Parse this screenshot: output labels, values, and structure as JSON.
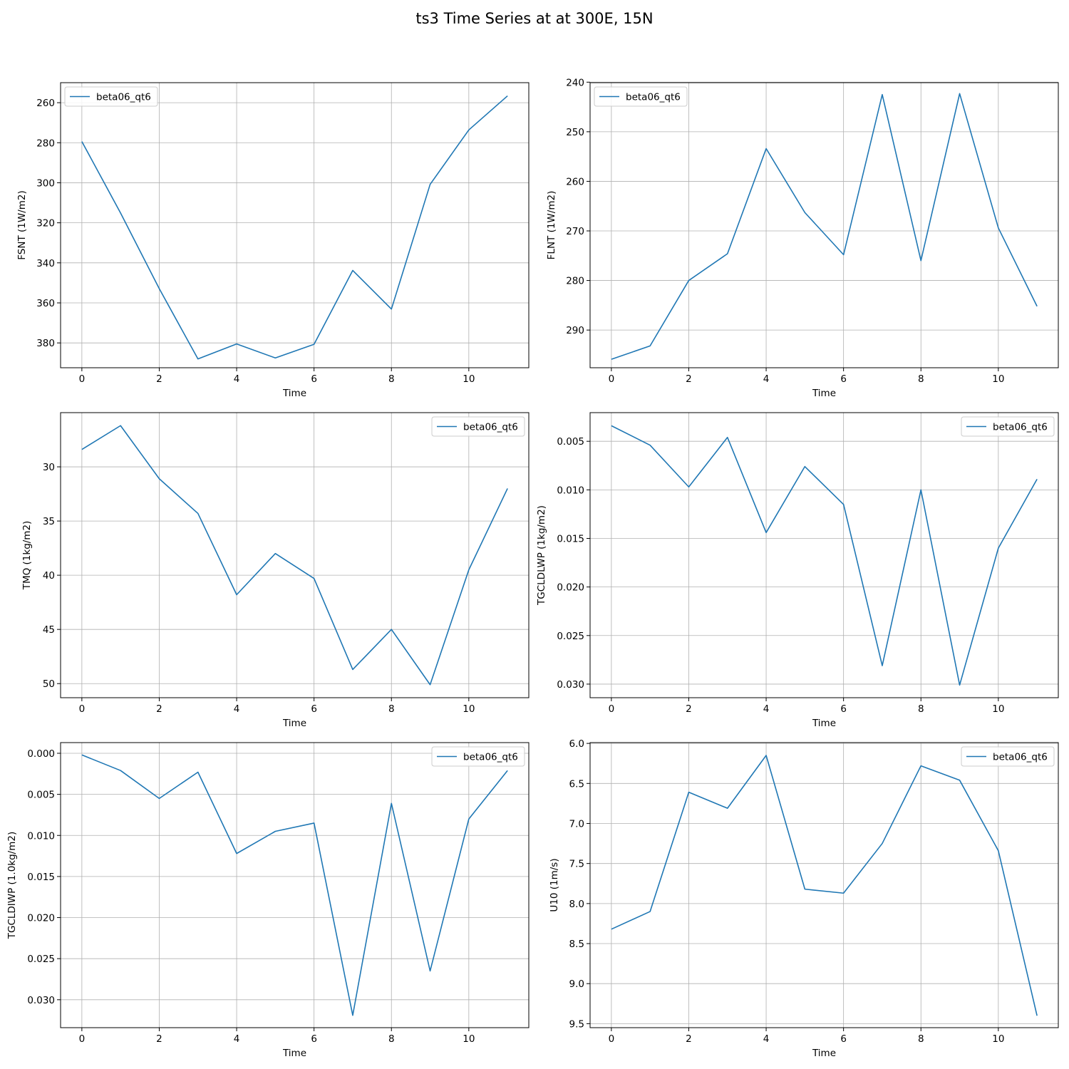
{
  "suptitle": "ts3 Time Series at at 300E, 15N",
  "colors": {
    "series": "#1f77b4",
    "grid": "#b0b0b0"
  },
  "chart_data": [
    {
      "type": "line",
      "ylabel": "FSNT (1W/m2)",
      "xlabel": "Time",
      "xlim": [
        -0.55,
        11.55
      ],
      "ylim": [
        392.4,
        250.0
      ],
      "y_inverted": true,
      "grid": true,
      "legend_placement": "upper left",
      "xticks": [
        0,
        2,
        4,
        6,
        8,
        10
      ],
      "yticks": [
        260,
        280,
        300,
        320,
        340,
        360,
        380
      ],
      "ytick_labels": [
        "260",
        "280",
        "300",
        "320",
        "340",
        "360",
        "380"
      ],
      "series": [
        {
          "name": "beta06_qt6",
          "x": [
            0,
            1,
            2,
            3,
            4,
            5,
            6,
            7,
            8,
            9,
            10,
            11
          ],
          "values": [
            279.4,
            315.1,
            352.9,
            388.0,
            380.5,
            387.5,
            380.7,
            343.8,
            363.1,
            300.8,
            273.6,
            256.6
          ]
        }
      ]
    },
    {
      "type": "line",
      "ylabel": "FLNT (1W/m2)",
      "xlabel": "Time",
      "xlim": [
        -0.55,
        11.55
      ],
      "ylim": [
        297.6,
        240.1
      ],
      "y_inverted": true,
      "grid": true,
      "legend_placement": "upper left",
      "xticks": [
        0,
        2,
        4,
        6,
        8,
        10
      ],
      "yticks": [
        240,
        250,
        260,
        270,
        280,
        290
      ],
      "ytick_labels": [
        "240",
        "250",
        "260",
        "270",
        "280",
        "290"
      ],
      "series": [
        {
          "name": "beta06_qt6",
          "x": [
            0,
            1,
            2,
            3,
            4,
            5,
            6,
            7,
            8,
            9,
            10,
            11
          ],
          "values": [
            295.9,
            293.2,
            280.0,
            274.6,
            253.4,
            266.3,
            274.8,
            242.5,
            276.0,
            242.3,
            269.4,
            285.2
          ]
        }
      ]
    },
    {
      "type": "line",
      "ylabel": "TMQ (1kg/m2)",
      "xlabel": "Time",
      "xlim": [
        -0.55,
        11.55
      ],
      "ylim": [
        51.3,
        25.0
      ],
      "y_inverted": true,
      "grid": true,
      "legend_placement": "upper right",
      "xticks": [
        0,
        2,
        4,
        6,
        8,
        10
      ],
      "yticks": [
        30,
        35,
        40,
        45,
        50
      ],
      "ytick_labels": [
        "30",
        "35",
        "40",
        "45",
        "50"
      ],
      "series": [
        {
          "name": "beta06_qt6",
          "x": [
            0,
            1,
            2,
            3,
            4,
            5,
            6,
            7,
            8,
            9,
            10,
            11
          ],
          "values": [
            28.4,
            26.2,
            31.1,
            34.3,
            41.8,
            38.0,
            40.3,
            48.7,
            45.0,
            50.1,
            39.5,
            32.0
          ]
        }
      ]
    },
    {
      "type": "line",
      "ylabel": "TGCLDLWP (1kg/m2)",
      "xlabel": "Time",
      "xlim": [
        -0.55,
        11.55
      ],
      "ylim": [
        0.0314,
        0.00205
      ],
      "y_inverted": true,
      "grid": true,
      "legend_placement": "upper right",
      "xticks": [
        0,
        2,
        4,
        6,
        8,
        10
      ],
      "yticks": [
        0.005,
        0.01,
        0.015,
        0.02,
        0.025,
        0.03
      ],
      "ytick_labels": [
        "0.005",
        "0.010",
        "0.015",
        "0.020",
        "0.025",
        "0.030"
      ],
      "series": [
        {
          "name": "beta06_qt6",
          "x": [
            0,
            1,
            2,
            3,
            4,
            5,
            6,
            7,
            8,
            9,
            10,
            11
          ],
          "values": [
            0.0034,
            0.0054,
            0.0097,
            0.0046,
            0.0144,
            0.0076,
            0.0115,
            0.0281,
            0.01,
            0.0301,
            0.016,
            0.0089
          ]
        }
      ]
    },
    {
      "type": "line",
      "ylabel": "TGCLDIWP (1.0kg/m2)",
      "xlabel": "Time",
      "xlim": [
        -0.55,
        11.55
      ],
      "ylim": [
        0.0334,
        -0.0013
      ],
      "y_inverted": true,
      "grid": true,
      "legend_placement": "upper right",
      "xticks": [
        0,
        2,
        4,
        6,
        8,
        10
      ],
      "yticks": [
        0.0,
        0.005,
        0.01,
        0.015,
        0.02,
        0.025,
        0.03
      ],
      "ytick_labels": [
        "0.000",
        "0.005",
        "0.010",
        "0.015",
        "0.020",
        "0.025",
        "0.030"
      ],
      "series": [
        {
          "name": "beta06_qt6",
          "x": [
            0,
            1,
            2,
            3,
            4,
            5,
            6,
            7,
            8,
            9,
            10,
            11
          ],
          "values": [
            0.0002,
            0.0021,
            0.0055,
            0.0023,
            0.0122,
            0.0095,
            0.0085,
            0.0319,
            0.0061,
            0.0265,
            0.008,
            0.0021
          ]
        }
      ]
    },
    {
      "type": "line",
      "ylabel": "U10 (1m/s)",
      "xlabel": "Time",
      "xlim": [
        -0.55,
        11.55
      ],
      "ylim": [
        9.55,
        5.99
      ],
      "y_inverted": true,
      "grid": true,
      "legend_placement": "upper right",
      "xticks": [
        0,
        2,
        4,
        6,
        8,
        10
      ],
      "yticks": [
        6.0,
        6.5,
        7.0,
        7.5,
        8.0,
        8.5,
        9.0,
        9.5
      ],
      "ytick_labels": [
        "6.0",
        "6.5",
        "7.0",
        "7.5",
        "8.0",
        "8.5",
        "9.0",
        "9.5"
      ],
      "series": [
        {
          "name": "beta06_qt6",
          "x": [
            0,
            1,
            2,
            3,
            4,
            5,
            6,
            7,
            8,
            9,
            10,
            11
          ],
          "values": [
            8.32,
            8.1,
            6.61,
            6.81,
            6.15,
            7.82,
            7.87,
            7.25,
            6.28,
            6.46,
            7.34,
            9.4
          ]
        }
      ]
    }
  ]
}
